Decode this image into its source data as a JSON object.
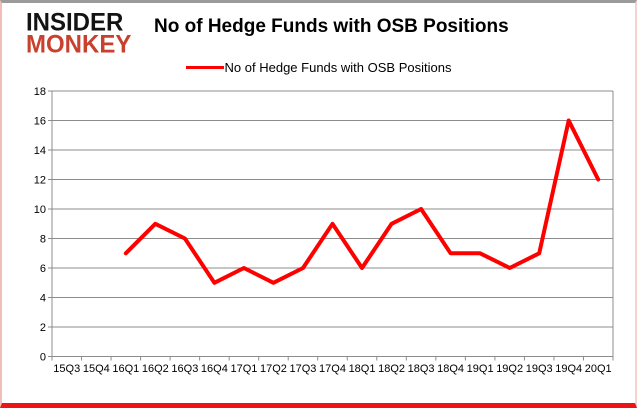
{
  "brand": {
    "line1": "INSIDER",
    "line2": "MONKEY"
  },
  "header": {
    "title": "No of Hedge Funds with OSB Positions"
  },
  "legend": {
    "label": "No of Hedge Funds with OSB Positions"
  },
  "colors": {
    "line": "#ff0000",
    "grid": "#8c8c8c",
    "axis": "#8c8c8c",
    "logo_red": "#c8402e",
    "border_red": "#ec1515"
  },
  "chart_data": {
    "type": "line",
    "title": "No of Hedge Funds with OSB Positions",
    "categories": [
      "15Q3",
      "15Q4",
      "16Q1",
      "16Q2",
      "16Q3",
      "16Q4",
      "17Q1",
      "17Q2",
      "17Q3",
      "17Q4",
      "18Q1",
      "18Q2",
      "18Q3",
      "18Q4",
      "19Q1",
      "19Q2",
      "19Q3",
      "19Q4",
      "20Q1"
    ],
    "series": [
      {
        "name": "No of Hedge Funds with OSB Positions",
        "values": [
          null,
          null,
          7,
          9,
          8,
          5,
          6,
          5,
          6,
          9,
          6,
          9,
          10,
          7,
          7,
          6,
          7,
          16,
          12
        ]
      }
    ],
    "xlabel": "",
    "ylabel": "",
    "ylim": [
      0,
      18
    ],
    "ytick_step": 2,
    "grid": true,
    "legend_position": "top-center"
  }
}
